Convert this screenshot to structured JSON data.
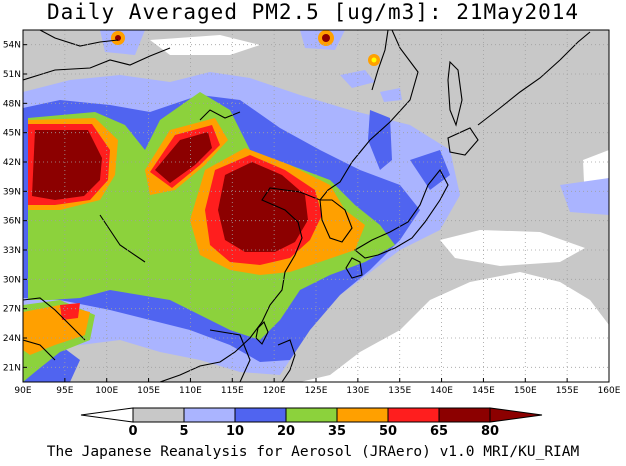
{
  "title": "Daily Averaged PM2.5 [ug/m3]: 21May2014",
  "footer": "The Japanese Reanalysis for Aerosol (JRAero) v1.0 MRI/KU_RIAM",
  "map": {
    "lon_range": [
      90,
      160
    ],
    "lat_range": [
      19.5,
      55.5
    ],
    "lon_ticks": [
      "90E",
      "95E",
      "100E",
      "105E",
      "110E",
      "115E",
      "120E",
      "125E",
      "130E",
      "135E",
      "140E",
      "145E",
      "150E",
      "155E",
      "160E"
    ],
    "lat_ticks": [
      "54N",
      "51N",
      "48N",
      "45N",
      "42N",
      "39N",
      "36N",
      "33N",
      "30N",
      "27N",
      "24N",
      "21N"
    ],
    "grid": "dotted"
  },
  "legend": {
    "labels": [
      "0",
      "5",
      "10",
      "20",
      "35",
      "50",
      "65",
      "80"
    ],
    "colors": [
      "#ffffff",
      "#c8c8c8",
      "#aab4ff",
      "#5064f0",
      "#8cd23c",
      "#ffa000",
      "#ff1e1e",
      "#8c0000"
    ]
  }
}
